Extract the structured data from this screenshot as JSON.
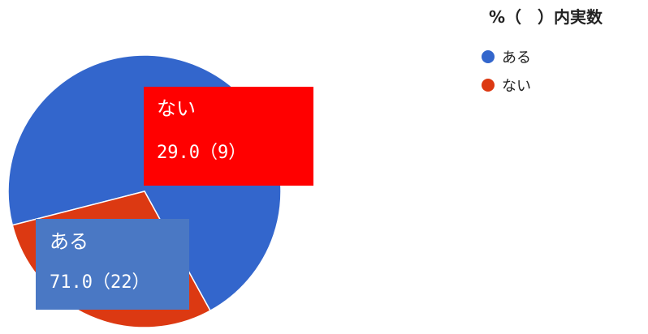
{
  "chart_data": {
    "type": "pie",
    "title": "%（　）内実数",
    "slices": [
      {
        "label": "ある",
        "value": 71.0,
        "count": 22,
        "color": "#3366cc",
        "value_text": "71.0（22）"
      },
      {
        "label": "ない",
        "value": 29.0,
        "count": 9,
        "color": "#dc3912",
        "value_text": "29.0（9）"
      }
    ],
    "legend": {
      "position": "right",
      "entries": [
        "ある",
        "ない"
      ]
    },
    "label_box_colors": {
      "ある": "#4a78c4",
      "ない": "#ff0000"
    }
  }
}
